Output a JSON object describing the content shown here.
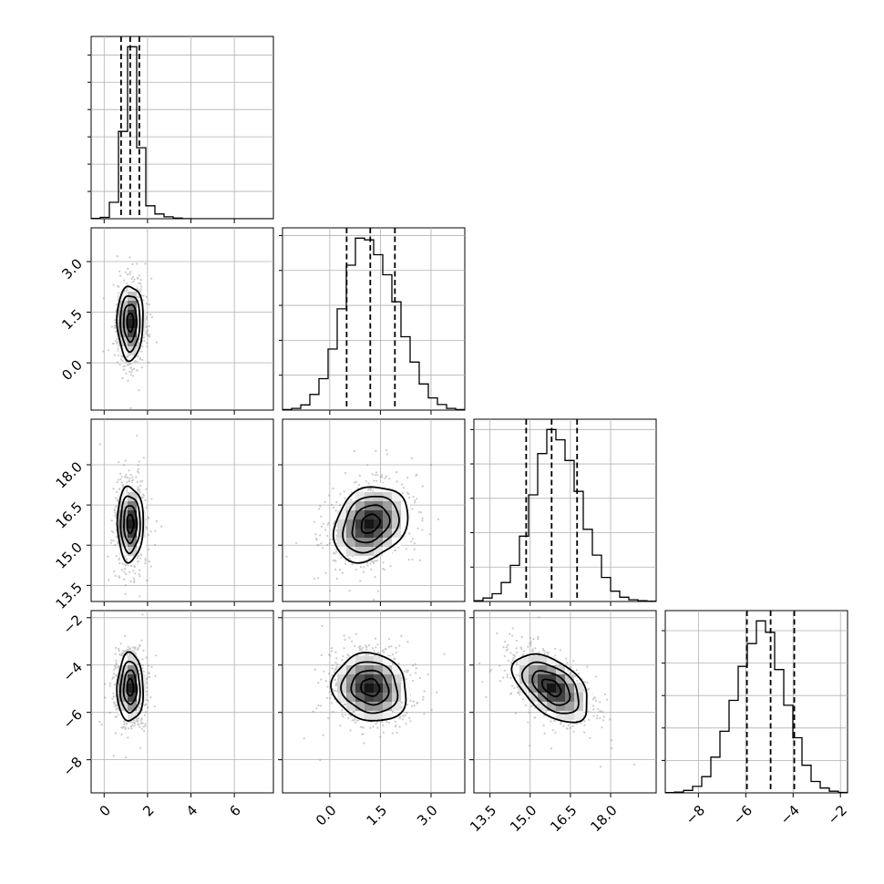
{
  "chart_data": {
    "type": "corner",
    "grid": true,
    "parameters": [
      {
        "range": [
          -0.6,
          7.8
        ],
        "ticks": [
          {
            "v": 0,
            "label": "0"
          },
          {
            "v": 2,
            "label": "2"
          },
          {
            "v": 4,
            "label": "4"
          },
          {
            "v": 6,
            "label": "6"
          }
        ],
        "quantiles": [
          0.78,
          1.2,
          1.62
        ],
        "hist": {
          "edges_start": -0.6,
          "bin_width": 0.42,
          "counts": [
            2,
            10,
            120,
            640,
            1260,
            520,
            95,
            35,
            14,
            5,
            1,
            0,
            0,
            0,
            0,
            0,
            0,
            0,
            0,
            0
          ]
        },
        "hist_ticks": [
          200,
          400,
          600,
          800,
          1000,
          1200
        ]
      },
      {
        "range": [
          -1.4,
          4.0
        ],
        "ticks": [
          {
            "v": 0.0,
            "label": "0.0"
          },
          {
            "v": 1.5,
            "label": "1.5"
          },
          {
            "v": 3.0,
            "label": "3.0"
          }
        ],
        "quantiles": [
          0.5,
          1.2,
          1.93
        ],
        "hist": {
          "edges_start": -1.4,
          "bin_width": 0.27,
          "counts": [
            3,
            10,
            30,
            90,
            180,
            350,
            580,
            830,
            985,
            975,
            890,
            775,
            620,
            420,
            275,
            150,
            70,
            32,
            10,
            3
          ]
        },
        "hist_ticks": [
          200,
          400,
          600,
          800,
          1000
        ]
      },
      {
        "range": [
          12.9,
          19.7
        ],
        "ticks": [
          {
            "v": 13.5,
            "label": "13.5"
          },
          {
            "v": 15.0,
            "label": "15.0"
          },
          {
            "v": 16.5,
            "label": "16.5"
          },
          {
            "v": 18.0,
            "label": "18.0"
          }
        ],
        "quantiles": [
          14.85,
          15.8,
          16.75
        ],
        "hist": {
          "edges_start": 12.9,
          "bin_width": 0.34,
          "counts": [
            5,
            20,
            45,
            110,
            210,
            380,
            620,
            860,
            1000,
            940,
            820,
            640,
            420,
            270,
            140,
            60,
            25,
            10,
            5,
            2
          ]
        },
        "hist_ticks": [
          200,
          400,
          600,
          800,
          1000
        ]
      },
      {
        "range": [
          -9.4,
          -1.7
        ],
        "ticks": [
          {
            "v": -8,
            "label": "−8"
          },
          {
            "v": -6,
            "label": "−6"
          },
          {
            "v": -4,
            "label": "−4"
          },
          {
            "v": -2,
            "label": "−2"
          }
        ],
        "quantiles": [
          -5.95,
          -4.95,
          -3.95
        ],
        "hist": {
          "edges_start": -9.4,
          "bin_width": 0.385,
          "counts": [
            2,
            5,
            15,
            40,
            100,
            220,
            380,
            570,
            780,
            920,
            1060,
            990,
            760,
            540,
            340,
            170,
            70,
            30,
            10,
            3
          ]
        },
        "hist_ticks": [
          200,
          400,
          600,
          800,
          1000
        ]
      }
    ],
    "pairs": [
      {
        "row": 1,
        "col": 0,
        "mean": [
          1.2,
          1.2
        ],
        "sd": [
          0.3,
          0.55
        ],
        "corr": 0.0
      },
      {
        "row": 2,
        "col": 0,
        "mean": [
          1.2,
          15.8
        ],
        "sd": [
          0.3,
          0.7
        ],
        "corr": 0.0
      },
      {
        "row": 2,
        "col": 1,
        "mean": [
          1.2,
          15.8
        ],
        "sd": [
          0.55,
          0.7
        ],
        "corr": 0.25
      },
      {
        "row": 3,
        "col": 0,
        "mean": [
          1.2,
          -4.95
        ],
        "sd": [
          0.3,
          0.72
        ],
        "corr": 0.0
      },
      {
        "row": 3,
        "col": 1,
        "mean": [
          1.2,
          -4.95
        ],
        "sd": [
          0.55,
          0.72
        ],
        "corr": -0.1
      },
      {
        "row": 3,
        "col": 2,
        "mean": [
          15.8,
          -4.95
        ],
        "sd": [
          0.7,
          0.72
        ],
        "corr": -0.5
      }
    ],
    "contour_levels_sigma": [
      0.5,
      1.0,
      1.5,
      2.0
    ]
  }
}
